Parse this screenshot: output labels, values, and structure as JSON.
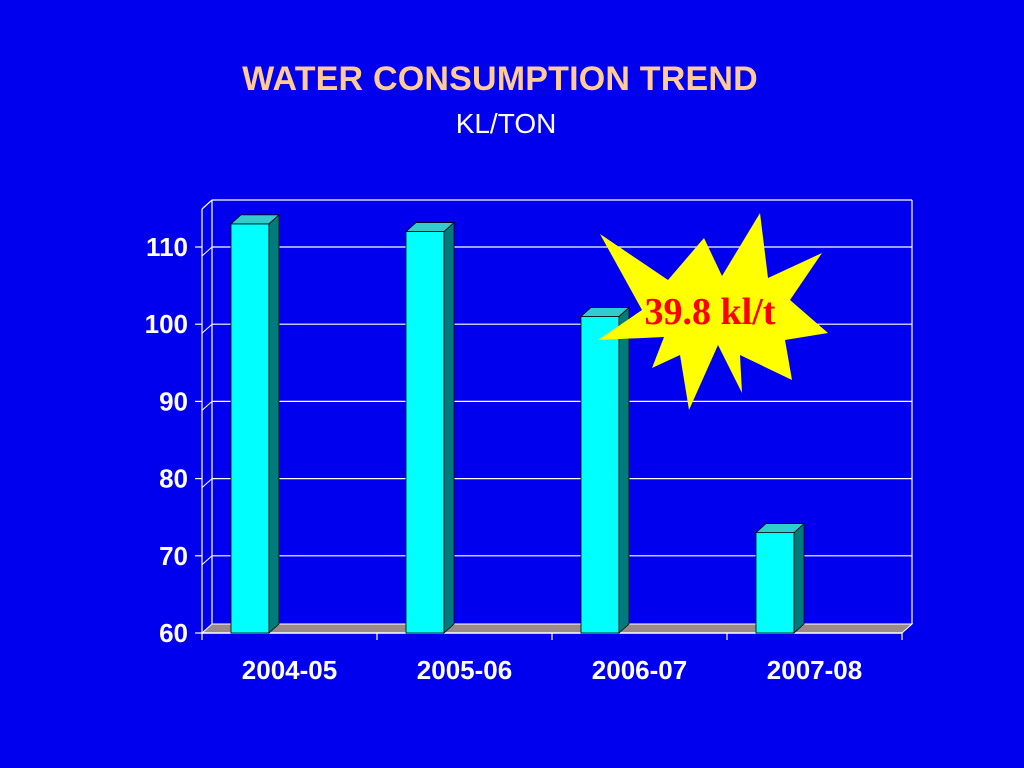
{
  "chart_data": {
    "type": "bar",
    "title": "WATER CONSUMPTION TREND",
    "subtitle": "KL/TON",
    "xlabel": "",
    "ylabel": "",
    "categories": [
      "2004-05",
      "2005-06",
      "2006-07",
      "2007-08"
    ],
    "values": [
      113,
      112,
      101,
      73
    ],
    "ylim": [
      60,
      115
    ],
    "yticks": [
      60,
      70,
      80,
      90,
      100,
      110
    ],
    "grid": true,
    "annotation": "39.8 kl/t"
  },
  "colors": {
    "background": "#0000ee",
    "title": "#ffcc99",
    "bar_front": "#00ffff",
    "bar_side": "#007b7b",
    "bar_top": "#33cccc",
    "floor": "#9b8a8a",
    "burst_fill": "#ffff00",
    "burst_text": "#ff0000"
  }
}
